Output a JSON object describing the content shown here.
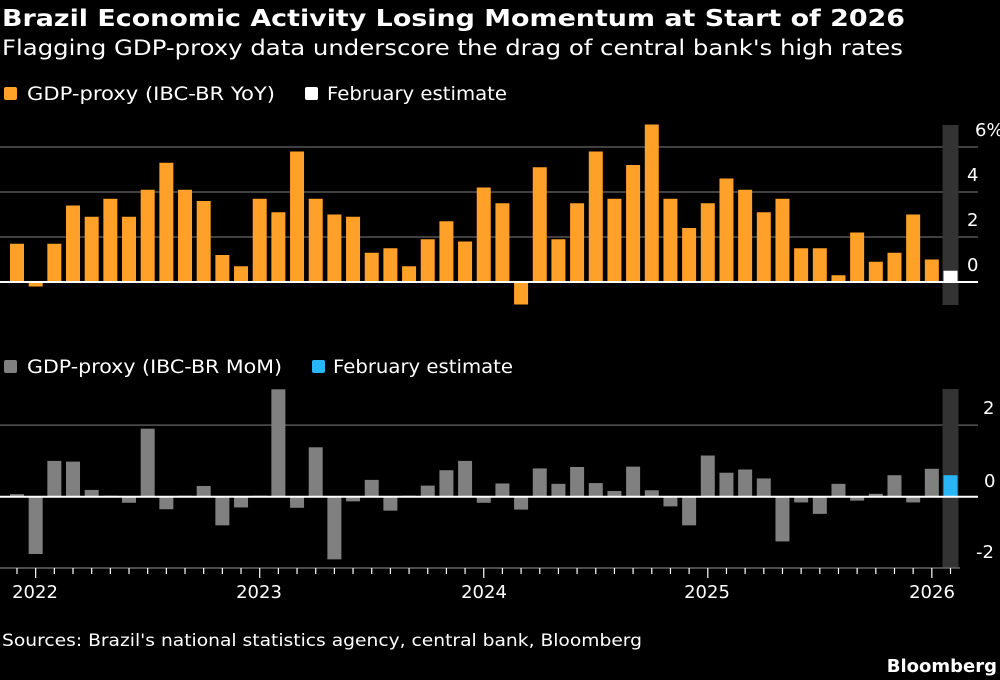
{
  "header": {
    "title": "Brazil Economic Activity Losing Momentum at Start of 2026",
    "subtitle": "Flagging GDP-proxy data underscore the drag of central bank's high rates"
  },
  "footer": {
    "sources": "Sources: Brazil's national statistics agency, central bank, Bloomberg",
    "brand": "Bloomberg"
  },
  "colors": {
    "background": "#000000",
    "yoy": "#FFA028",
    "yoy_estimate": "#FFFFFF",
    "mom": "#808080",
    "mom_estimate": "#29B6F6",
    "estimate_band": "#333333",
    "gridline": "#555555"
  },
  "chart_data": [
    {
      "type": "bar",
      "legend": [
        {
          "name": "GDP-proxy (IBC-BR YoY)",
          "color": "#FFA028"
        },
        {
          "name": "February estimate",
          "color": "#FFFFFF"
        }
      ],
      "legend_position": "top-left",
      "y_ticks": [
        "6%",
        "4",
        "2",
        "0"
      ],
      "y_tick_values": [
        6,
        4,
        2,
        0
      ],
      "ylim": [
        -1,
        7
      ],
      "grid": true,
      "x": [
        "2021-12",
        "2022-01",
        "2022-02",
        "2022-03",
        "2022-04",
        "2022-05",
        "2022-06",
        "2022-07",
        "2022-08",
        "2022-09",
        "2022-10",
        "2022-11",
        "2022-12",
        "2023-01",
        "2023-02",
        "2023-03",
        "2023-04",
        "2023-05",
        "2023-06",
        "2023-07",
        "2023-08",
        "2023-09",
        "2023-10",
        "2023-11",
        "2023-12",
        "2024-01",
        "2024-02",
        "2024-03",
        "2024-04",
        "2024-05",
        "2024-06",
        "2024-07",
        "2024-08",
        "2024-09",
        "2024-10",
        "2024-11",
        "2024-12",
        "2025-01",
        "2025-02",
        "2025-03",
        "2025-04",
        "2025-05",
        "2025-06",
        "2025-07",
        "2025-08",
        "2025-09",
        "2025-10",
        "2025-11",
        "2025-12",
        "2026-01",
        "2026-02"
      ],
      "series": [
        {
          "name": "GDP-proxy (IBC-BR YoY)",
          "values": [
            1.7,
            -0.2,
            1.7,
            3.4,
            2.9,
            3.7,
            2.9,
            4.1,
            5.3,
            4.1,
            3.6,
            1.2,
            0.7,
            3.7,
            3.1,
            5.8,
            3.7,
            3.0,
            2.9,
            1.3,
            1.5,
            0.7,
            1.9,
            2.7,
            1.8,
            4.2,
            3.5,
            -1.0,
            5.1,
            1.9,
            3.5,
            5.8,
            3.7,
            5.2,
            7.0,
            3.7,
            2.4,
            3.5,
            4.6,
            4.1,
            3.1,
            3.7,
            1.5,
            1.5,
            0.3,
            2.2,
            0.9,
            1.3,
            3.0,
            1.0,
            null
          ]
        },
        {
          "name": "February estimate",
          "values": [
            null,
            null,
            null,
            null,
            null,
            null,
            null,
            null,
            null,
            null,
            null,
            null,
            null,
            null,
            null,
            null,
            null,
            null,
            null,
            null,
            null,
            null,
            null,
            null,
            null,
            null,
            null,
            null,
            null,
            null,
            null,
            null,
            null,
            null,
            null,
            null,
            null,
            null,
            null,
            null,
            null,
            null,
            null,
            null,
            null,
            null,
            null,
            null,
            null,
            null,
            0.5
          ]
        }
      ]
    },
    {
      "type": "bar",
      "legend": [
        {
          "name": "GDP-proxy (IBC-BR MoM)",
          "color": "#808080"
        },
        {
          "name": "February estimate",
          "color": "#29B6F6"
        }
      ],
      "legend_position": "top-left",
      "y_ticks": [
        "2",
        "0",
        "-2"
      ],
      "y_tick_values": [
        2,
        0,
        -2
      ],
      "ylim": [
        -2,
        3.1
      ],
      "grid": true,
      "x_tick_labels": [
        "2022",
        "2023",
        "2024",
        "2025",
        "2026"
      ],
      "x": [
        "2021-12",
        "2022-01",
        "2022-02",
        "2022-03",
        "2022-04",
        "2022-05",
        "2022-06",
        "2022-07",
        "2022-08",
        "2022-09",
        "2022-10",
        "2022-11",
        "2022-12",
        "2023-01",
        "2023-02",
        "2023-03",
        "2023-04",
        "2023-05",
        "2023-06",
        "2023-07",
        "2023-08",
        "2023-09",
        "2023-10",
        "2023-11",
        "2023-12",
        "2024-01",
        "2024-02",
        "2024-03",
        "2024-04",
        "2024-05",
        "2024-06",
        "2024-07",
        "2024-08",
        "2024-09",
        "2024-10",
        "2024-11",
        "2024-12",
        "2025-01",
        "2025-02",
        "2025-03",
        "2025-04",
        "2025-05",
        "2025-06",
        "2025-07",
        "2025-08",
        "2025-09",
        "2025-10",
        "2025-11",
        "2025-12",
        "2026-01",
        "2026-02"
      ],
      "series": [
        {
          "name": "GDP-proxy (IBC-BR MoM)",
          "values": [
            0.07,
            -1.6,
            1.0,
            0.98,
            0.19,
            0.0,
            -0.17,
            1.9,
            -0.35,
            0.0,
            0.3,
            -0.8,
            -0.3,
            0.02,
            3.0,
            -0.31,
            1.38,
            -1.75,
            -0.13,
            0.47,
            -0.39,
            0.0,
            0.31,
            0.74,
            1.0,
            -0.17,
            0.37,
            -0.36,
            0.79,
            0.36,
            0.83,
            0.38,
            0.16,
            0.84,
            0.18,
            -0.27,
            -0.8,
            1.15,
            0.67,
            0.76,
            0.51,
            -1.25,
            -0.16,
            -0.48,
            0.36,
            -0.11,
            0.08,
            0.6,
            -0.16,
            0.78,
            null
          ]
        },
        {
          "name": "February estimate",
          "values": [
            null,
            null,
            null,
            null,
            null,
            null,
            null,
            null,
            null,
            null,
            null,
            null,
            null,
            null,
            null,
            null,
            null,
            null,
            null,
            null,
            null,
            null,
            null,
            null,
            null,
            null,
            null,
            null,
            null,
            null,
            null,
            null,
            null,
            null,
            null,
            null,
            null,
            null,
            null,
            null,
            null,
            null,
            null,
            null,
            null,
            null,
            null,
            null,
            null,
            null,
            0.6
          ]
        }
      ]
    }
  ]
}
